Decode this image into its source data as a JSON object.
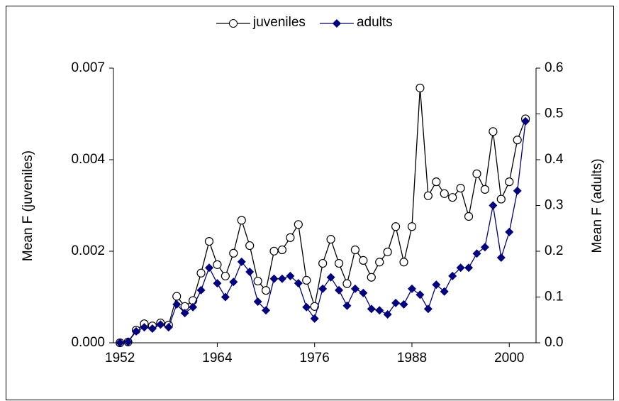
{
  "chart_data": {
    "type": "line",
    "y_label": "Mean F (juveniles)",
    "y2_label": "Mean F (adults)",
    "x": [
      1952,
      1953,
      1954,
      1955,
      1956,
      1957,
      1958,
      1959,
      1960,
      1961,
      1962,
      1963,
      1964,
      1965,
      1966,
      1967,
      1968,
      1969,
      1970,
      1971,
      1972,
      1973,
      1974,
      1975,
      1976,
      1977,
      1978,
      1979,
      1980,
      1981,
      1982,
      1983,
      1984,
      1985,
      1986,
      1987,
      1988,
      1989,
      1990,
      1991,
      1992,
      1993,
      1994,
      1995,
      1996,
      1997,
      1998,
      1999,
      2000,
      2001,
      2002
    ],
    "xlim": [
      1951.2,
      2003.3
    ],
    "xticks": [
      1952,
      1964,
      1976,
      1988,
      2000
    ],
    "ylim": [
      0,
      0.0065
    ],
    "yticks": [
      {
        "value": 0,
        "label": "0.000"
      },
      {
        "value": 0.0021667,
        "label": "0.002"
      },
      {
        "value": 0.0043333,
        "label": "0.004"
      },
      {
        "value": 0.0065,
        "label": "0.007"
      }
    ],
    "y2lim": [
      0,
      0.6
    ],
    "y2ticks": [
      {
        "value": 0,
        "label": "0.0"
      },
      0.1,
      0.2,
      0.3,
      0.4,
      0.5,
      0.6
    ],
    "legend": "top",
    "series": [
      {
        "name": "juveniles",
        "color": "#000000",
        "marker": "circle",
        "values": [
          0,
          2e-05,
          0.0003,
          0.00045,
          0.0004,
          0.00047,
          0.00042,
          0.0011,
          0.00086,
          0.001,
          0.00165,
          0.0024,
          0.00185,
          0.00158,
          0.00212,
          0.0029,
          0.0023,
          0.00146,
          0.00124,
          0.00217,
          0.0022,
          0.00249,
          0.0028,
          0.00148,
          0.00086,
          0.00188,
          0.00245,
          0.00188,
          0.0014,
          0.0022,
          0.00195,
          0.00155,
          0.00191,
          0.00215,
          0.00275,
          0.00191,
          0.00275,
          0.00603,
          0.00348,
          0.00381,
          0.00353,
          0.00344,
          0.00366,
          0.00299,
          0.004,
          0.00363,
          0.005,
          0.0034,
          0.00381,
          0.0048,
          0.0053
        ]
      },
      {
        "name": "adults",
        "color": "#000080",
        "marker": "diamond",
        "axis": "y2",
        "values": [
          0,
          0.002,
          0.025,
          0.034,
          0.031,
          0.04,
          0.034,
          0.084,
          0.065,
          0.078,
          0.115,
          0.164,
          0.13,
          0.1,
          0.133,
          0.177,
          0.155,
          0.09,
          0.071,
          0.14,
          0.14,
          0.146,
          0.13,
          0.078,
          0.053,
          0.118,
          0.143,
          0.115,
          0.081,
          0.118,
          0.109,
          0.074,
          0.071,
          0.062,
          0.087,
          0.084,
          0.118,
          0.105,
          0.074,
          0.127,
          0.112,
          0.146,
          0.164,
          0.164,
          0.195,
          0.209,
          0.3,
          0.186,
          0.242,
          0.332,
          0.484
        ]
      }
    ]
  }
}
